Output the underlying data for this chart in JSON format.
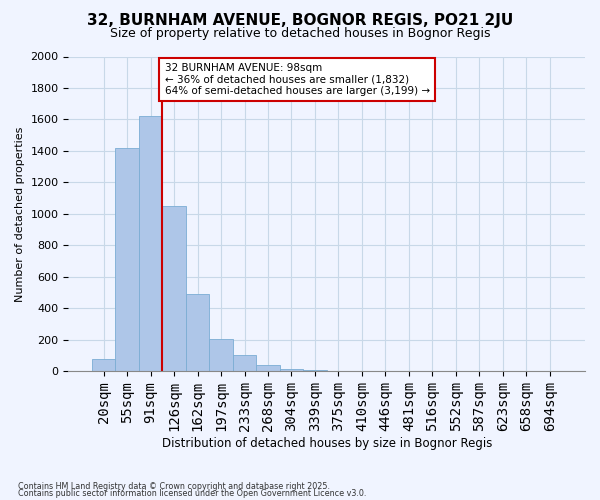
{
  "title": "32, BURNHAM AVENUE, BOGNOR REGIS, PO21 2JU",
  "subtitle": "Size of property relative to detached houses in Bognor Regis",
  "xlabel": "Distribution of detached houses by size in Bognor Regis",
  "ylabel": "Number of detached properties",
  "bar_heights": [
    80,
    1420,
    1620,
    1050,
    490,
    205,
    105,
    40,
    15,
    10,
    0,
    0,
    0,
    0,
    0,
    0,
    0,
    0,
    0,
    0
  ],
  "bar_labels": [
    "20sqm",
    "55sqm",
    "91sqm",
    "126sqm",
    "162sqm",
    "197sqm",
    "233sqm",
    "268sqm",
    "304sqm",
    "339sqm",
    "375sqm",
    "410sqm",
    "446sqm",
    "481sqm",
    "516sqm",
    "552sqm",
    "587sqm",
    "623sqm",
    "658sqm",
    "694sqm"
  ],
  "bar_color": "#aec6e8",
  "bar_edge_color": "#7badd4",
  "grid_color": "#c8d8e8",
  "vline_color": "#cc0000",
  "annotation_line1": "32 BURNHAM AVENUE: 98sqm",
  "annotation_line2": "← 36% of detached houses are smaller (1,832)",
  "annotation_line3": "64% of semi-detached houses are larger (3,199) →",
  "annotation_box_facecolor": "white",
  "annotation_box_edgecolor": "#cc0000",
  "ylim": [
    0,
    2000
  ],
  "yticks": [
    0,
    200,
    400,
    600,
    800,
    1000,
    1200,
    1400,
    1600,
    1800,
    2000
  ],
  "footnote1": "Contains HM Land Registry data © Crown copyright and database right 2025.",
  "footnote2": "Contains public sector information licensed under the Open Government Licence v3.0.",
  "background_color": "#f0f4ff",
  "title_fontsize": 11,
  "subtitle_fontsize": 9
}
